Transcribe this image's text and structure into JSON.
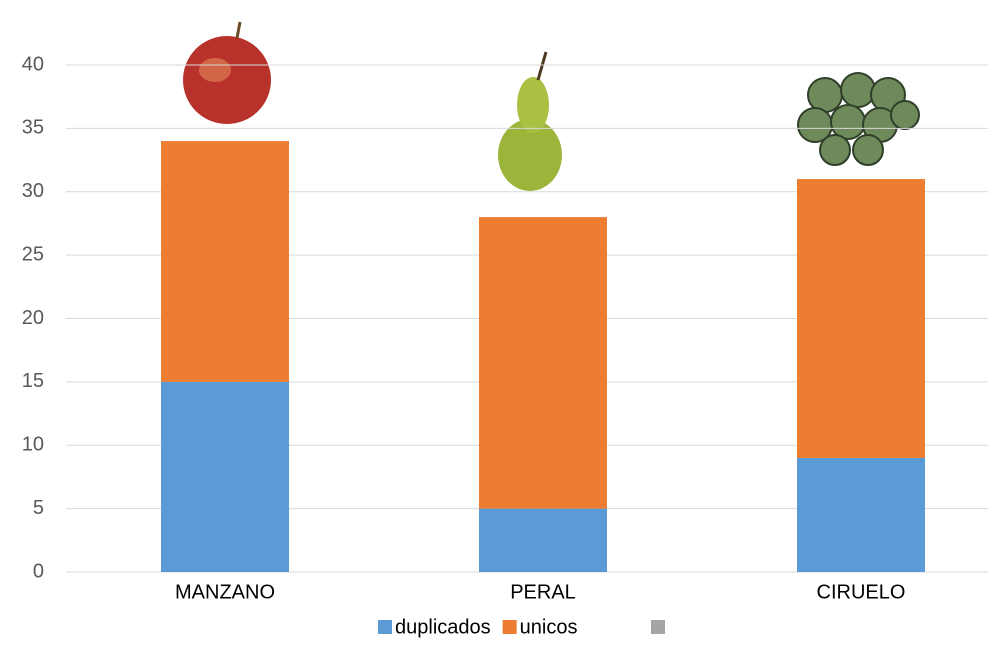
{
  "chart_data": {
    "type": "stacked-bar",
    "categories": [
      "MANZANO",
      "PERAL",
      "CIRUELO"
    ],
    "series": [
      {
        "name": "duplicados",
        "color": "#5b9bd5",
        "values": [
          15,
          5,
          9
        ]
      },
      {
        "name": "unicos",
        "color": "#ed7d31",
        "values": [
          19,
          23,
          22
        ]
      }
    ],
    "ylim": [
      0,
      40
    ],
    "yticks": [
      0,
      5,
      10,
      15,
      20,
      25,
      30,
      35,
      40
    ],
    "grid": true,
    "legend": "bottom"
  }
}
